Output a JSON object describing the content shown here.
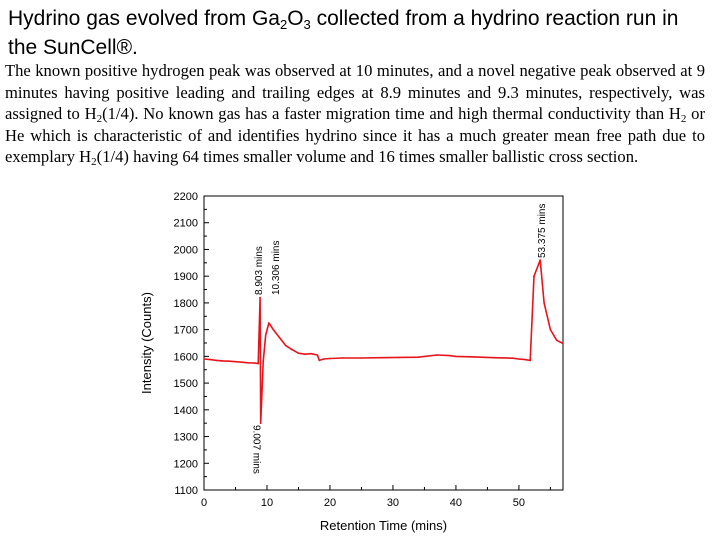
{
  "slide": {
    "title_part1": "Hydrino gas evolved from Ga",
    "title_sub1": "2",
    "title_part2": "O",
    "title_sub2": "3",
    "title_part3": " collected from a hydrino reaction run in the SunCell®.",
    "body_part1": "The known positive hydrogen peak was observed at 10 minutes, and a novel negative peak observed at 9 minutes having positive leading and trailing edges at 8.9 minutes and 9.3 minutes, respectively, was assigned to H",
    "body_sub1": "2",
    "body_part2": "(1/4).  No known gas has a faster migration time and high thermal conductivity than H",
    "body_sub2": "2",
    "body_part3": " or He which is characteristic of and identifies hydrino since it has a much greater mean free path due to exemplary H",
    "body_sub3": "2",
    "body_part4": "(1/4) having 64 times smaller volume and 16 times smaller ballistic cross section."
  },
  "chart_data": {
    "type": "line",
    "title": "",
    "xlabel": "Retention Time (mins)",
    "ylabel": "Intensity (Counts)",
    "xlim": [
      0,
      57
    ],
    "ylim": [
      1100,
      2200
    ],
    "xticks": [
      0,
      10,
      20,
      30,
      40,
      50
    ],
    "yticks": [
      1100,
      1200,
      1300,
      1400,
      1500,
      1600,
      1700,
      1800,
      1900,
      2000,
      2100,
      2200
    ],
    "grid": false,
    "series": [
      {
        "color": "#e8141b",
        "x": [
          0,
          1,
          2,
          3,
          4,
          5,
          6,
          7,
          8,
          8.6,
          8.903,
          9.007,
          9.4,
          9.8,
          10.306,
          11,
          12,
          13,
          14,
          15,
          16,
          17,
          18,
          18.3,
          19,
          20,
          22,
          25,
          28,
          31,
          34,
          37,
          39,
          40,
          43,
          46,
          49,
          50,
          51,
          51.8,
          52.4,
          53.375,
          54,
          55,
          56,
          57
        ],
        "y": [
          1590,
          1588,
          1585,
          1583,
          1582,
          1580,
          1578,
          1576,
          1575,
          1573,
          1820,
          1350,
          1580,
          1680,
          1725,
          1700,
          1670,
          1640,
          1625,
          1612,
          1608,
          1610,
          1605,
          1585,
          1590,
          1592,
          1594,
          1594,
          1595,
          1596,
          1597,
          1605,
          1603,
          1600,
          1598,
          1595,
          1593,
          1590,
          1588,
          1585,
          1900,
          1960,
          1800,
          1700,
          1660,
          1648
        ]
      }
    ],
    "annotations": [
      {
        "text": "8.903 mins",
        "x": 8.903
      },
      {
        "text": "10.306 mins",
        "x": 10.306
      },
      {
        "text": "9.007 mins",
        "x": 9.007
      },
      {
        "text": "53.375 mins",
        "x": 53.375
      }
    ]
  }
}
